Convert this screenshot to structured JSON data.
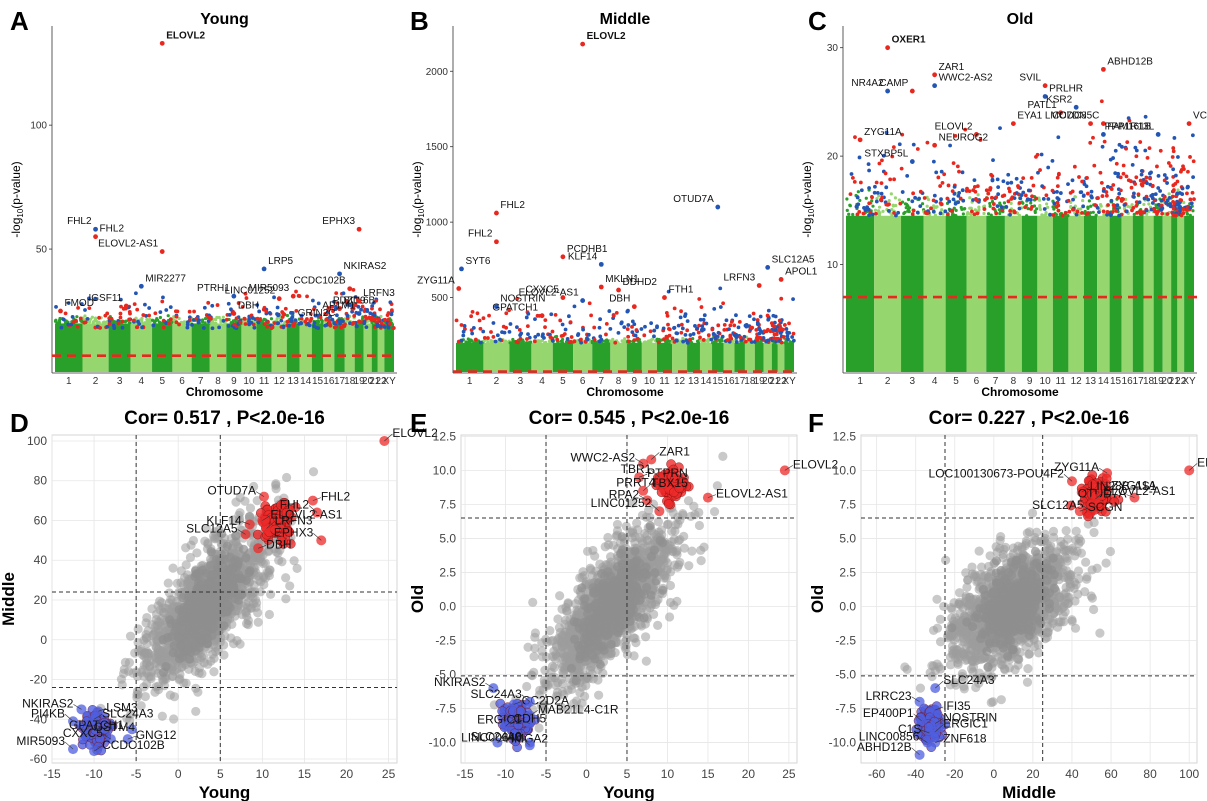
{
  "colors": {
    "red": "#e8281e",
    "blue": "#2356b4",
    "green_dark": "#29a02a",
    "green_light": "#96d66e",
    "grey": "#9d9d9d",
    "red_fill": "#ee2a2a",
    "blue_fill": "#4f5fe0",
    "threshold": "#e8281e"
  },
  "chart_data": [
    {
      "type": "scatter",
      "panel": "A",
      "title": "Young",
      "xlabel": "Chromosome",
      "ylabel": "-log10(p-value)",
      "ylim": [
        0,
        140
      ],
      "yticks": [
        50,
        100
      ],
      "chromosome_labels": [
        "1",
        "2",
        "3",
        "4",
        "5",
        "6",
        "7",
        "8",
        "9",
        "10",
        "11",
        "12",
        "13",
        "14",
        "15",
        "16",
        "17",
        "18",
        "19",
        "20",
        "21",
        "22",
        "XY"
      ],
      "threshold": 7,
      "points": [
        {
          "label": "ELOVL2",
          "x": 5.5,
          "y": 133,
          "bold": true
        },
        {
          "label": "FHL2",
          "x": 2,
          "y": 58
        },
        {
          "label": "FHL2",
          "x": 2,
          "y": 55
        },
        {
          "label": "ELOVL2-AS1",
          "x": 5.5,
          "y": 49
        },
        {
          "label": "MIR2277",
          "x": 4.5,
          "y": 35
        },
        {
          "label": "IGSF11",
          "x": 3.8,
          "y": 27
        },
        {
          "label": "FMOD",
          "x": 1.2,
          "y": 25
        },
        {
          "label": "PTRH1",
          "x": 9,
          "y": 31
        },
        {
          "label": "DBH",
          "x": 9,
          "y": 24
        },
        {
          "label": "LINC01252",
          "x": 12,
          "y": 30
        },
        {
          "label": "LRP5",
          "x": 11,
          "y": 42
        },
        {
          "label": "MIR5093",
          "x": 13,
          "y": 31
        },
        {
          "label": "PDZD9",
          "x": 16,
          "y": 26
        },
        {
          "label": "GRIN2C",
          "x": 17,
          "y": 21
        },
        {
          "label": "BCL6B",
          "x": 17,
          "y": 26
        },
        {
          "label": "CCDC102B",
          "x": 18,
          "y": 34
        },
        {
          "label": "NKIRAS2",
          "x": 17,
          "y": 40
        },
        {
          "label": "EPHX3",
          "x": 19,
          "y": 58
        },
        {
          "label": "LRFN3",
          "x": 19,
          "y": 29
        },
        {
          "label": "AP1M1",
          "x": 19,
          "y": 24
        }
      ]
    },
    {
      "type": "scatter",
      "panel": "B",
      "title": "Middle",
      "xlabel": "Chromosome",
      "ylabel": "-log10(p-value)",
      "ylim": [
        0,
        2300
      ],
      "yticks": [
        500,
        1000,
        1500,
        2000
      ],
      "chromosome_labels": [
        "1",
        "2",
        "3",
        "4",
        "5",
        "6",
        "7",
        "8",
        "9",
        "10",
        "11",
        "12",
        "13",
        "14",
        "15",
        "16",
        "17",
        "18",
        "19",
        "20",
        "21",
        "22",
        "XY"
      ],
      "threshold": 10,
      "points": [
        {
          "label": "ELOVL2",
          "x": 6,
          "y": 2180,
          "bold": true
        },
        {
          "label": "OTUD7A",
          "x": 15,
          "y": 1100
        },
        {
          "label": "FHL2",
          "x": 2,
          "y": 1060
        },
        {
          "label": "FHL2",
          "x": 2,
          "y": 870
        },
        {
          "label": "SYT6",
          "x": 1.2,
          "y": 690
        },
        {
          "label": "ZYG11A",
          "x": 1.1,
          "y": 560
        },
        {
          "label": "PCDHB1",
          "x": 5,
          "y": 770
        },
        {
          "label": "KLF14",
          "x": 7,
          "y": 720
        },
        {
          "label": "MKLN1",
          "x": 7,
          "y": 570
        },
        {
          "label": "CXXC5",
          "x": 5,
          "y": 500
        },
        {
          "label": "NOSTRIN",
          "x": 2,
          "y": 440
        },
        {
          "label": "GPATCH1",
          "x": 4,
          "y": 380
        },
        {
          "label": "DDHD2",
          "x": 8,
          "y": 550
        },
        {
          "label": "ELOVL2-AS1",
          "x": 6,
          "y": 480
        },
        {
          "label": "FTH1",
          "x": 11,
          "y": 500
        },
        {
          "label": "DBH",
          "x": 9,
          "y": 440
        },
        {
          "label": "SLC12A5",
          "x": 20,
          "y": 700
        },
        {
          "label": "LRFN3",
          "x": 19,
          "y": 580
        },
        {
          "label": "APOL1",
          "x": 22,
          "y": 620
        }
      ]
    },
    {
      "type": "scatter",
      "panel": "C",
      "title": "Old",
      "xlabel": "Chromosome",
      "ylabel": "-log10(p-value)",
      "ylim": [
        0,
        32
      ],
      "yticks": [
        10,
        20,
        30
      ],
      "chromosome_labels": [
        "1",
        "2",
        "3",
        "4",
        "5",
        "6",
        "7",
        "8",
        "9",
        "10",
        "11",
        "12",
        "13",
        "14",
        "15",
        "16",
        "17",
        "18",
        "19",
        "20",
        "21",
        "22",
        "XY"
      ],
      "threshold": 7,
      "points": [
        {
          "label": "OXER1",
          "x": 2,
          "y": 30,
          "bold": true
        },
        {
          "label": "NR4A2",
          "x": 2,
          "y": 26
        },
        {
          "label": "ZAR1",
          "x": 4,
          "y": 27.5
        },
        {
          "label": "CAMP",
          "x": 3,
          "y": 26
        },
        {
          "label": "WWC2-AS2",
          "x": 4,
          "y": 26.5
        },
        {
          "label": "ELOVL2",
          "x": 6,
          "y": 22
        },
        {
          "label": "ZYG11A",
          "x": 1,
          "y": 21.5
        },
        {
          "label": "STXBP5L",
          "x": 3,
          "y": 19.5
        },
        {
          "label": "NEUROG2",
          "x": 4,
          "y": 21
        },
        {
          "label": "SVIL",
          "x": 10,
          "y": 26.5
        },
        {
          "label": "PRLHR",
          "x": 10,
          "y": 25.5
        },
        {
          "label": "PATL1",
          "x": 11,
          "y": 24
        },
        {
          "label": "EYA1",
          "x": 8,
          "y": 23
        },
        {
          "label": "KSR2",
          "x": 12,
          "y": 24.5
        },
        {
          "label": "ABHD12B",
          "x": 14,
          "y": 28
        },
        {
          "label": "LMO7DN",
          "x": 13,
          "y": 23
        },
        {
          "label": "FAM161B",
          "x": 14,
          "y": 22
        },
        {
          "label": "CCDC85C",
          "x": 14,
          "y": 23
        },
        {
          "label": "VCX",
          "x": 23,
          "y": 23
        },
        {
          "label": "PPP1R13L",
          "x": 19,
          "y": 22
        }
      ]
    },
    {
      "type": "scatter",
      "panel": "D",
      "title": "Cor= 0.517 , P<2.0e-16",
      "xlabel": "Young",
      "ylabel": "Middle",
      "xlim": [
        -15,
        26
      ],
      "ylim": [
        -62,
        103
      ],
      "xticks": [
        -15,
        -10,
        -5,
        0,
        5,
        10,
        15,
        20,
        25
      ],
      "yticks": [
        -60,
        -40,
        -20,
        0,
        20,
        40,
        60,
        80,
        100
      ],
      "vlines": [
        -5,
        5
      ],
      "hlines": [
        -24,
        24
      ],
      "points": [
        {
          "label": "ELOVL2",
          "x": 24.5,
          "y": 100,
          "group": "up"
        },
        {
          "label": "OTUD7A",
          "x": 10.2,
          "y": 72,
          "group": "up"
        },
        {
          "label": "FHL2",
          "x": 16,
          "y": 70,
          "group": "up"
        },
        {
          "label": "FHL2",
          "x": 16.5,
          "y": 64,
          "group": "up"
        },
        {
          "label": "ELOVL2-AS1",
          "x": 10,
          "y": 60,
          "group": "up"
        },
        {
          "label": "KLF14",
          "x": 8.5,
          "y": 58,
          "group": "up"
        },
        {
          "label": "LRFN3",
          "x": 10.5,
          "y": 56,
          "group": "up"
        },
        {
          "label": "SLC12A5",
          "x": 8,
          "y": 53,
          "group": "up"
        },
        {
          "label": "DBH",
          "x": 9.5,
          "y": 46,
          "group": "up"
        },
        {
          "label": "EPHX3",
          "x": 17,
          "y": 50,
          "group": "up"
        },
        {
          "label": "NKIRAS2",
          "x": -11.5,
          "y": -35,
          "group": "down"
        },
        {
          "label": "LSM3",
          "x": -9.5,
          "y": -36,
          "group": "down"
        },
        {
          "label": "PI4KB",
          "x": -12.5,
          "y": -41,
          "group": "down"
        },
        {
          "label": "SLC24A3",
          "x": -10,
          "y": -40,
          "group": "down"
        },
        {
          "label": "GPATCH1",
          "x": -5.5,
          "y": -45,
          "group": "down"
        },
        {
          "label": "GSTM4",
          "x": -11,
          "y": -48,
          "group": "down"
        },
        {
          "label": "CXXC5",
          "x": -8,
          "y": -50,
          "group": "down"
        },
        {
          "label": "GNG12",
          "x": -6,
          "y": -50,
          "group": "down"
        },
        {
          "label": "MIR5093",
          "x": -12.5,
          "y": -55,
          "group": "down"
        },
        {
          "label": "CCDC102B",
          "x": -10,
          "y": -56,
          "group": "down"
        }
      ]
    },
    {
      "type": "scatter",
      "panel": "E",
      "title": "Cor= 0.545 , P<2.0e-16",
      "xlabel": "Young",
      "ylabel": "Old",
      "xlim": [
        -15.5,
        26
      ],
      "ylim": [
        -11.5,
        12.6
      ],
      "xticks": [
        -15,
        -10,
        -5,
        0,
        5,
        10,
        15,
        20,
        25
      ],
      "yticks": [
        -10,
        -7.5,
        -5,
        -2.5,
        0,
        2.5,
        5,
        7.5,
        10,
        12.5
      ],
      "ytick_labels": [
        "-10.0",
        "-7.5",
        "-5.0",
        "-2.5",
        "0.0",
        "2.5",
        "5.0",
        "7.5",
        "10.0",
        "12.5"
      ],
      "vlines": [
        -5,
        5
      ],
      "hlines": [
        -5.1,
        6.5
      ],
      "points": [
        {
          "label": "ZAR1",
          "x": 8,
          "y": 10.8,
          "group": "up"
        },
        {
          "label": "WWC2-AS2",
          "x": 7,
          "y": 10.5,
          "group": "up"
        },
        {
          "label": "PTPRN",
          "x": 6.5,
          "y": 9.5,
          "group": "up"
        },
        {
          "label": "TBR1",
          "x": 9,
          "y": 9.5,
          "group": "up"
        },
        {
          "label": "ELOVL2",
          "x": 24.5,
          "y": 10,
          "group": "up"
        },
        {
          "label": "PRRT4",
          "x": 9.5,
          "y": 8.8,
          "group": "up"
        },
        {
          "label": "TBX15",
          "x": 7,
          "y": 8.5,
          "group": "up"
        },
        {
          "label": "RPA2",
          "x": 7.5,
          "y": 7.8,
          "group": "up"
        },
        {
          "label": "ELOVL2-AS1",
          "x": 15,
          "y": 8,
          "group": "up"
        },
        {
          "label": "LINC01252",
          "x": 9,
          "y": 7,
          "group": "up"
        },
        {
          "label": "NKIRAS2",
          "x": -11.5,
          "y": -6,
          "group": "down"
        },
        {
          "label": "CC2D2A",
          "x": -9,
          "y": -7.2,
          "group": "down"
        },
        {
          "label": "SLC24A3",
          "x": -7,
          "y": -7,
          "group": "down"
        },
        {
          "label": "MAB21L4-C1R",
          "x": -7,
          "y": -8,
          "group": "down"
        },
        {
          "label": "ERGIC1",
          "x": -7,
          "y": -8.6,
          "group": "down"
        },
        {
          "label": "CDH5",
          "x": -10,
          "y": -8.8,
          "group": "down"
        },
        {
          "label": "SLC24A3",
          "x": -7,
          "y": -10,
          "group": "down"
        },
        {
          "label": "HMGA2",
          "x": -11,
          "y": -10,
          "group": "down"
        },
        {
          "label": "LINC00640",
          "x": -7,
          "y": -10.2,
          "group": "down"
        }
      ]
    },
    {
      "type": "scatter",
      "panel": "F",
      "title": "Cor= 0.227 , P<2.0e-16",
      "xlabel": "Middle",
      "ylabel": "Old",
      "xlim": [
        -68,
        104
      ],
      "ylim": [
        -11.5,
        12.6
      ],
      "xticks": [
        -60,
        -40,
        -20,
        0,
        20,
        40,
        60,
        80,
        100
      ],
      "yticks": [
        -10,
        -7.5,
        -5,
        -2.5,
        0,
        2.5,
        5,
        7.5,
        10,
        12.5
      ],
      "ytick_labels": [
        "-10.0",
        "-7.5",
        "-5.0",
        "-2.5",
        "0.0",
        "2.5",
        "5.0",
        "7.5",
        "10.0",
        "12.5"
      ],
      "vlines": [
        -25,
        25
      ],
      "hlines": [
        -5.1,
        6.5
      ],
      "points": [
        {
          "label": "ELOVL2",
          "x": 100,
          "y": 10,
          "group": "up"
        },
        {
          "label": "ZYG11A",
          "x": 58,
          "y": 9.8,
          "group": "up"
        },
        {
          "label": "ZYG11A",
          "x": 56,
          "y": 8.6,
          "group": "up"
        },
        {
          "label": "LOC100130673-POU4F2",
          "x": 40,
          "y": 9.2,
          "group": "up"
        },
        {
          "label": "LIN28B-AS1",
          "x": 45,
          "y": 8.4,
          "group": "up"
        },
        {
          "label": "OTUD7A",
          "x": 72,
          "y": 8,
          "group": "up"
        },
        {
          "label": "ELOVL2-AS1",
          "x": 52,
          "y": 7.9,
          "group": "up"
        },
        {
          "label": "SLC12A5",
          "x": 50,
          "y": 7,
          "group": "up"
        },
        {
          "label": "SCGN",
          "x": 44,
          "y": 7,
          "group": "up"
        },
        {
          "label": "SLC24A3",
          "x": -30,
          "y": -6,
          "group": "down"
        },
        {
          "label": "LRRC23",
          "x": -38,
          "y": -7,
          "group": "down"
        },
        {
          "label": "IFI35",
          "x": -30,
          "y": -7.6,
          "group": "down"
        },
        {
          "label": "EP400P1",
          "x": -37,
          "y": -8.4,
          "group": "down"
        },
        {
          "label": "NOSTRIN",
          "x": -30,
          "y": -8.6,
          "group": "down"
        },
        {
          "label": "C1S",
          "x": -33,
          "y": -9.3,
          "group": "down"
        },
        {
          "label": "ERGIC1",
          "x": -30,
          "y": -9.2,
          "group": "down"
        },
        {
          "label": "LINC00856",
          "x": -34,
          "y": -10,
          "group": "down"
        },
        {
          "label": "ZNF618",
          "x": -30,
          "y": -10,
          "group": "down"
        },
        {
          "label": "ABHD12B",
          "x": -38,
          "y": -10.9,
          "group": "down"
        }
      ]
    }
  ]
}
